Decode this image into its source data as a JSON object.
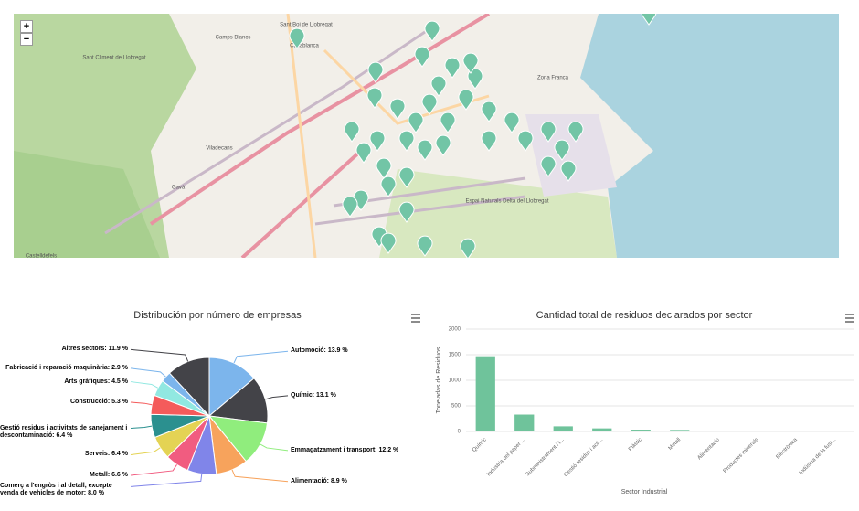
{
  "map": {
    "zoom_in": "+",
    "zoom_out": "−",
    "labels": [
      "Sant Boi de Llobregat",
      "Casablanca",
      "Camps Blancs",
      "Sant Climent de Llobregat",
      "Viladecans",
      "Gavà",
      "Castelldefels",
      "Zona Franca",
      "Espai Naturals Delta del Llobregat"
    ]
  },
  "chart_data": [
    {
      "type": "pie",
      "title": "Distribución por número de empresas",
      "values": [
        13.9,
        13.1,
        12.2,
        8.9,
        8.0,
        6.6,
        6.4,
        6.4,
        5.3,
        4.5,
        2.9,
        11.9
      ],
      "value_labels": [
        "Automoció: 13.9 %",
        "Químic: 13.1 %",
        "Emmagatzament i transport: 12.2 %",
        "Alimentació: 8.9 %",
        "Comerç a l'engròs i al detall, excepte venda de vehicles de motor: 8.0 %",
        "Metall: 6.6 %",
        "Serveis: 6.4 %",
        "Gestió residus i activitats de sanejament i descontaminació: 6.4 %",
        "Construcció: 5.3 %",
        "Arts gràfiques: 4.5 %",
        "Fabricació i reparació maquinària: 2.9 %",
        "Altres sectors: 11.9 %"
      ],
      "colors": [
        "#7cb5ec",
        "#434348",
        "#90ed7d",
        "#f7a35c",
        "#8085e9",
        "#f15c80",
        "#e4d354",
        "#2b908f",
        "#f45b5b",
        "#91e8e1",
        "#7cb5ec",
        "#434348"
      ]
    },
    {
      "type": "bar",
      "title": "Cantidad total de residuos declarados por sector",
      "x_label": "Sector Industrial",
      "y_label": "Toneladas de Residuos",
      "categories": [
        "Químic",
        "Indústria del paper ...",
        "Subministrament i t...",
        "Gestió residus i acti...",
        "Plàstic",
        "Metall",
        "Alimentació",
        "Productes minerals",
        "Electrònica",
        "Indústria de la fust..."
      ],
      "values": [
        1470,
        330,
        100,
        60,
        35,
        30,
        8,
        3,
        2,
        1
      ],
      "color": "#6fc39b",
      "ylim": [
        0,
        2000
      ],
      "yticks": [
        0,
        500,
        1000,
        1500,
        2000
      ],
      "grid": true
    }
  ]
}
